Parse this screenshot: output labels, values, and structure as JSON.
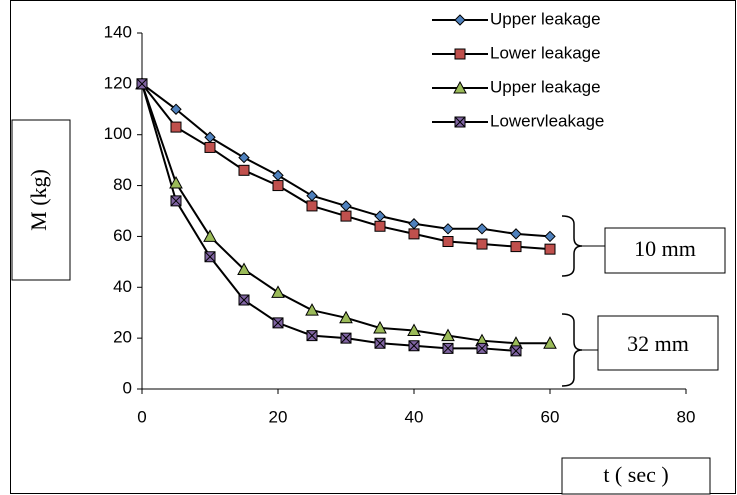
{
  "chart_data": {
    "type": "line",
    "x_label": "t ( sec )",
    "y_label": "M (kg)",
    "x": [
      0,
      5,
      10,
      15,
      20,
      25,
      30,
      35,
      40,
      45,
      50,
      55,
      60
    ],
    "series": [
      {
        "name": "Upper leakage",
        "color": "#4f81bd",
        "marker": "diamond",
        "values": [
          120,
          110,
          99,
          91,
          84,
          76,
          72,
          68,
          65,
          63,
          63,
          61,
          60
        ]
      },
      {
        "name": "Lower leakage",
        "color": "#c0504d",
        "marker": "square",
        "values": [
          120,
          103,
          95,
          86,
          80,
          72,
          68,
          64,
          61,
          58,
          57,
          56,
          55
        ]
      },
      {
        "name": "Upper leakage",
        "color": "#9bbb59",
        "marker": "triangle",
        "values": [
          120,
          81,
          60,
          47,
          38,
          31,
          28,
          24,
          23,
          21,
          19,
          18,
          18
        ]
      },
      {
        "name": "Lowervleakage",
        "color": "#8064a2",
        "marker": "xsquare",
        "values": [
          120,
          74,
          52,
          35,
          26,
          21,
          20,
          18,
          17,
          16,
          16,
          15,
          null
        ]
      }
    ],
    "line_color": "#000000",
    "xlim": [
      0,
      80
    ],
    "xticks": [
      0,
      20,
      40,
      60,
      80
    ],
    "ylim": [
      0,
      140
    ],
    "yticks": [
      0,
      20,
      40,
      60,
      80,
      100,
      120,
      140
    ],
    "grid": false,
    "annotations": [
      "10 mm",
      "32 mm"
    ]
  }
}
